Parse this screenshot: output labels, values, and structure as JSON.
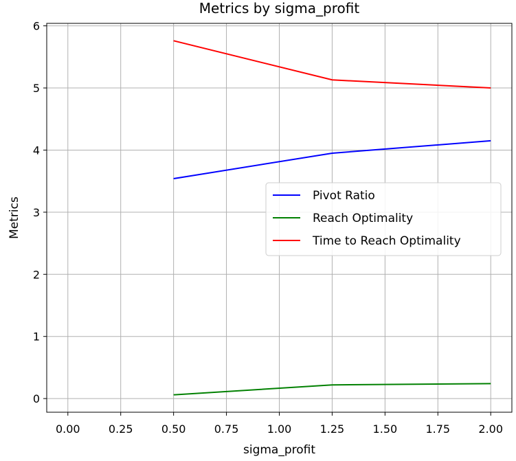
{
  "chart_data": {
    "type": "line",
    "title": "Metrics by sigma_profit",
    "xlabel": "sigma_profit",
    "ylabel": "Metrics",
    "xlim": [
      -0.1,
      2.1
    ],
    "ylim": [
      -0.22,
      6.04
    ],
    "xticks": [
      0.0,
      0.25,
      0.5,
      0.75,
      1.0,
      1.25,
      1.5,
      1.75,
      2.0
    ],
    "xtick_labels": [
      "0.00",
      "0.25",
      "0.50",
      "0.75",
      "1.00",
      "1.25",
      "1.50",
      "1.75",
      "2.00"
    ],
    "yticks": [
      0,
      1,
      2,
      3,
      4,
      5,
      6
    ],
    "ytick_labels": [
      "0",
      "1",
      "2",
      "3",
      "4",
      "5",
      "6"
    ],
    "grid": true,
    "legend_position": "center-right",
    "x": [
      0.5,
      1.25,
      2.0
    ],
    "series": [
      {
        "name": "Pivot Ratio",
        "color": "#0000ff",
        "values": [
          3.54,
          3.95,
          4.15
        ]
      },
      {
        "name": "Reach Optimality",
        "color": "#008000",
        "values": [
          0.06,
          0.22,
          0.24
        ]
      },
      {
        "name": "Time to Reach Optimality",
        "color": "#ff0000",
        "values": [
          5.76,
          5.13,
          5.0
        ]
      }
    ]
  }
}
